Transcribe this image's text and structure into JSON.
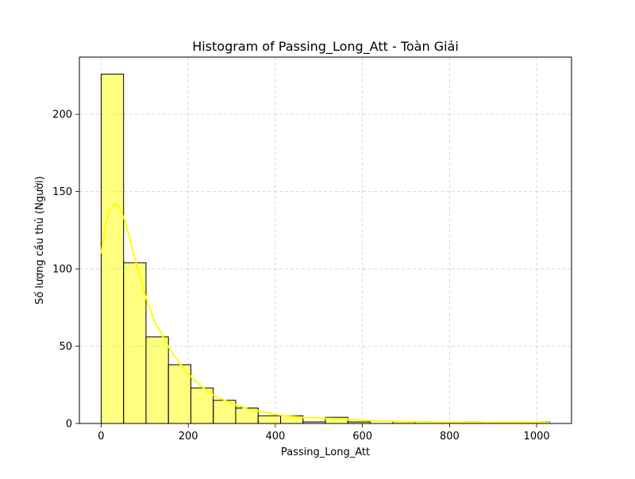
{
  "chart_data": {
    "type": "bar",
    "title": "Histogram of Passing_Long_Att - Toàn Giải",
    "xlabel": "Passing_Long_Att",
    "ylabel": "Số lượng cầu thủ (Người)",
    "xlim": [
      -50,
      1080
    ],
    "ylim": [
      0,
      237
    ],
    "xticks": [
      0,
      200,
      400,
      600,
      800,
      1000
    ],
    "yticks": [
      0,
      50,
      100,
      150,
      200
    ],
    "grid": true,
    "bar_color": "#ffff00",
    "kde_color": "#ffff00",
    "bins": [
      {
        "start": 0,
        "end": 51.5,
        "count": 226
      },
      {
        "start": 51.5,
        "end": 103,
        "count": 104
      },
      {
        "start": 103,
        "end": 154.5,
        "count": 56
      },
      {
        "start": 154.5,
        "end": 206,
        "count": 38
      },
      {
        "start": 206,
        "end": 257.5,
        "count": 23
      },
      {
        "start": 257.5,
        "end": 309,
        "count": 15
      },
      {
        "start": 309,
        "end": 360.5,
        "count": 10
      },
      {
        "start": 360.5,
        "end": 412,
        "count": 5
      },
      {
        "start": 412,
        "end": 463.5,
        "count": 5
      },
      {
        "start": 463.5,
        "end": 515,
        "count": 1
      },
      {
        "start": 515,
        "end": 566.5,
        "count": 4
      },
      {
        "start": 566.5,
        "end": 618,
        "count": 1
      },
      {
        "start": 618,
        "end": 669.5,
        "count": 0
      },
      {
        "start": 669.5,
        "end": 721,
        "count": 1
      },
      {
        "start": 721,
        "end": 772.5,
        "count": 0
      },
      {
        "start": 772.5,
        "end": 824,
        "count": 0
      },
      {
        "start": 824,
        "end": 875.5,
        "count": 1
      },
      {
        "start": 875.5,
        "end": 927,
        "count": 0
      },
      {
        "start": 927,
        "end": 978.5,
        "count": 1
      },
      {
        "start": 978.5,
        "end": 1030,
        "count": 1
      }
    ],
    "kde": [
      {
        "x": 0,
        "y": 110
      },
      {
        "x": 10,
        "y": 128
      },
      {
        "x": 20,
        "y": 138
      },
      {
        "x": 30,
        "y": 142
      },
      {
        "x": 40,
        "y": 141
      },
      {
        "x": 55,
        "y": 131
      },
      {
        "x": 70,
        "y": 115
      },
      {
        "x": 85,
        "y": 99
      },
      {
        "x": 100,
        "y": 84
      },
      {
        "x": 120,
        "y": 68
      },
      {
        "x": 140,
        "y": 57
      },
      {
        "x": 160,
        "y": 47
      },
      {
        "x": 180,
        "y": 39
      },
      {
        "x": 200,
        "y": 32
      },
      {
        "x": 230,
        "y": 24
      },
      {
        "x": 260,
        "y": 18
      },
      {
        "x": 300,
        "y": 13
      },
      {
        "x": 340,
        "y": 9
      },
      {
        "x": 380,
        "y": 7
      },
      {
        "x": 420,
        "y": 5
      },
      {
        "x": 460,
        "y": 4
      },
      {
        "x": 500,
        "y": 3.5
      },
      {
        "x": 550,
        "y": 3
      },
      {
        "x": 600,
        "y": 2
      },
      {
        "x": 650,
        "y": 1.5
      },
      {
        "x": 700,
        "y": 1.2
      },
      {
        "x": 750,
        "y": 1
      },
      {
        "x": 800,
        "y": 0.8
      },
      {
        "x": 850,
        "y": 0.7
      },
      {
        "x": 900,
        "y": 0.7
      },
      {
        "x": 950,
        "y": 0.8
      },
      {
        "x": 1000,
        "y": 0.8
      },
      {
        "x": 1030,
        "y": 0.6
      }
    ]
  }
}
